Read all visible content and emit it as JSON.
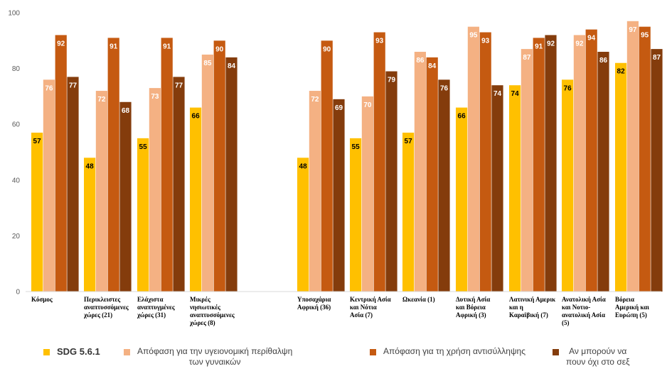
{
  "chart_data": {
    "type": "bar",
    "ylim": [
      0,
      100
    ],
    "yticks": [
      0,
      20,
      40,
      60,
      80,
      100
    ],
    "grid": false,
    "legend_position": "bottom",
    "categories": [
      [
        "Κόσμος"
      ],
      [
        "Περικλειστες",
        "αναπτυσσόμενες",
        "χώρες (21)"
      ],
      [
        "Ελάχιστα",
        "αναπτυγμένες",
        "χώρες (31)"
      ],
      [
        "Μικρές",
        "νησιωτικές",
        "αναπτυσσόμενες",
        "χώρες (8)"
      ],
      [],
      [
        "Υποσαχάρια",
        "Αφρική (36)"
      ],
      [
        "Κεντρική Ασία",
        "και Νότια",
        "Ασία (7)"
      ],
      [
        "Ωκεανία (1)"
      ],
      [
        "Δυτική Ασία",
        "και Βόρεια",
        "Αφρική (3)"
      ],
      [
        "Λατινική Αμερικ",
        "και η",
        "Καραϊβική (7)"
      ],
      [
        "Ανατολική Ασία",
        "και Νοτιο-",
        "ανατολική Ασία",
        "(5)"
      ],
      [
        "Βόρεια",
        "Αμερική και",
        "Ευρώπη (5)"
      ]
    ],
    "series": [
      {
        "name": "SDG 5.6.1",
        "color": "#FFC000",
        "label_color": "#000000",
        "values": [
          57,
          48,
          55,
          66,
          null,
          48,
          55,
          57,
          66,
          74,
          76,
          82
        ]
      },
      {
        "name": "Απόφαση για την υγειονομική περίθαλψη των γυναικών",
        "color": "#F4B183",
        "label_color": "#ffffff",
        "values": [
          76,
          72,
          73,
          85,
          null,
          72,
          70,
          86,
          95,
          87,
          92,
          97
        ]
      },
      {
        "name": "Απόφαση για τη χρήση αντισύλληψης",
        "color": "#C55A11",
        "label_color": "#ffffff",
        "values": [
          92,
          91,
          91,
          90,
          null,
          90,
          93,
          84,
          93,
          91,
          94,
          95
        ]
      },
      {
        "name": "Αν μπορούν να πουν όχι στο σεξ",
        "color": "#843C0C",
        "label_color": "#ffffff",
        "values": [
          77,
          68,
          77,
          84,
          null,
          69,
          79,
          76,
          74,
          92,
          86,
          87
        ]
      }
    ]
  },
  "legend": [
    {
      "lines": [
        "SDG 5.6.1"
      ],
      "color": "#FFC000",
      "bold": true
    },
    {
      "lines": [
        "Απόφαση για την υγειονομική περίθαλψη",
        "των γυναικών"
      ],
      "color": "#F4B183",
      "bold": false
    },
    {
      "lines": [
        "Απόφαση για τη χρήση αντισύλληψης"
      ],
      "color": "#C55A11",
      "bold": false
    },
    {
      "lines": [
        "Αν μπορούν να",
        "πουν όχι στο σεξ"
      ],
      "color": "#843C0C",
      "bold": false
    }
  ]
}
